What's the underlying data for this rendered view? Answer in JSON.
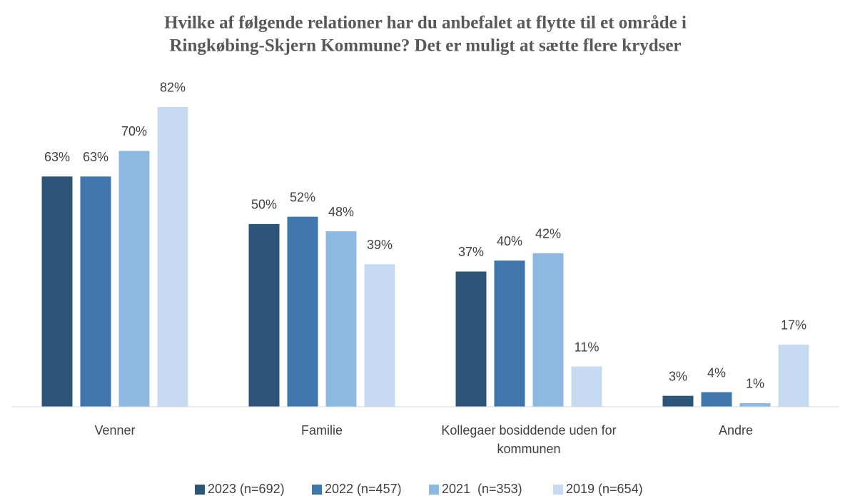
{
  "chart_data": {
    "type": "bar",
    "title": [
      "Hvilke af følgende relationer har du anbefalet at flytte til et område i",
      "Ringkøbing-Skjern Kommune? Det er muligt at sætte flere krydser"
    ],
    "categories": [
      "Venner",
      "Familie",
      "Kollegaer bosiddende uden for kommunen",
      "Andre"
    ],
    "series": [
      {
        "name": "2023 (n=692)",
        "color": "#2c5577",
        "values": [
          63,
          50,
          37,
          3
        ],
        "value_labels": [
          "63%",
          "50%",
          "37%",
          "3%"
        ]
      },
      {
        "name": "2022 (n=457)",
        "color": "#3f76ad",
        "values": [
          63,
          52,
          40,
          4
        ],
        "value_labels": [
          "63%",
          "52%",
          "40%",
          "4%"
        ]
      },
      {
        "name": "2021  (n=353)",
        "color": "#8db8e2",
        "values": [
          70,
          48,
          42,
          1
        ],
        "value_labels": [
          "70%",
          "48%",
          "42%",
          "1%"
        ]
      },
      {
        "name": "2019 (n=654)",
        "color": "#c6dbf1",
        "values": [
          82,
          39,
          11,
          17
        ],
        "value_labels": [
          "82%",
          "39%",
          "11%",
          "17%"
        ]
      }
    ],
    "ylim": [
      0,
      90
    ],
    "legend": "bottom"
  }
}
